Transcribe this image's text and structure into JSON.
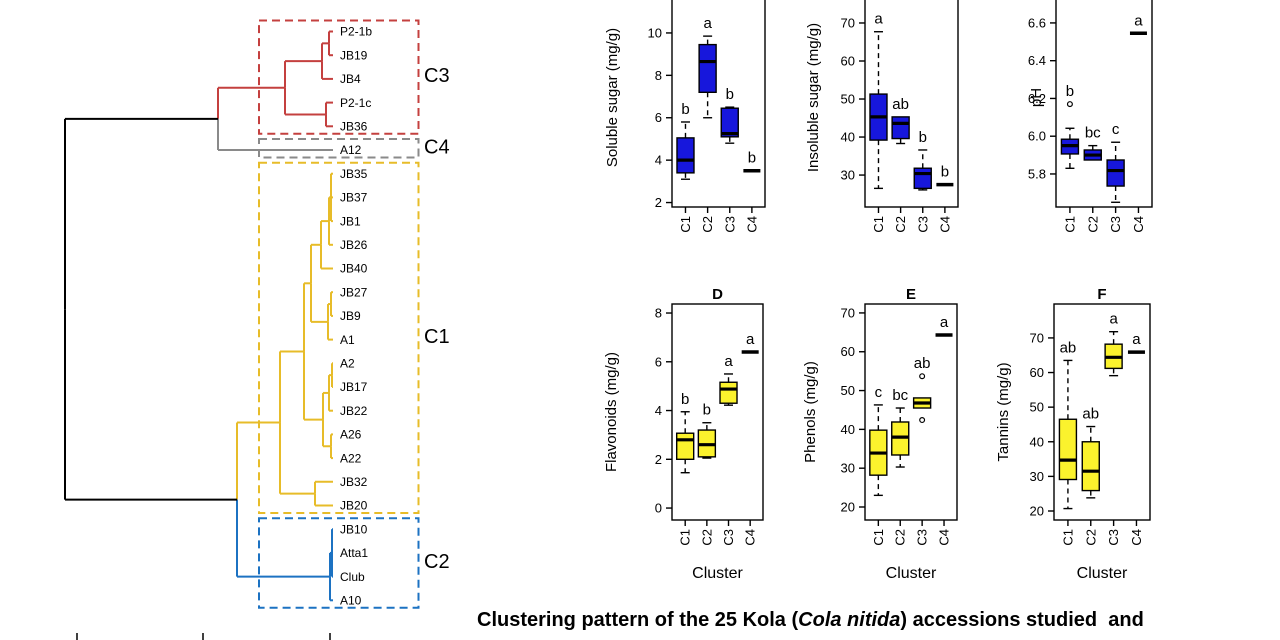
{
  "caption": {
    "prefix": "Clustering pattern of the 25 Kola (",
    "italic": "Cola nitida",
    "suffix": ") accessions studied  and"
  },
  "chart_data": [
    {
      "type": "dendrogram",
      "orientation": "horizontal",
      "leaves": [
        {
          "name": "P2-1b",
          "cluster": "C3"
        },
        {
          "name": "JB19",
          "cluster": "C3"
        },
        {
          "name": "JB4",
          "cluster": "C3"
        },
        {
          "name": "P2-1c",
          "cluster": "C3"
        },
        {
          "name": "JB36",
          "cluster": "C3"
        },
        {
          "name": "A12",
          "cluster": "C4"
        },
        {
          "name": "JB35",
          "cluster": "C1"
        },
        {
          "name": "JB37",
          "cluster": "C1"
        },
        {
          "name": "JB1",
          "cluster": "C1"
        },
        {
          "name": "JB26",
          "cluster": "C1"
        },
        {
          "name": "JB40",
          "cluster": "C1"
        },
        {
          "name": "JB27",
          "cluster": "C1"
        },
        {
          "name": "JB9",
          "cluster": "C1"
        },
        {
          "name": "A1",
          "cluster": "C1"
        },
        {
          "name": "A2",
          "cluster": "C1"
        },
        {
          "name": "JB17",
          "cluster": "C1"
        },
        {
          "name": "JB22",
          "cluster": "C1"
        },
        {
          "name": "A26",
          "cluster": "C1"
        },
        {
          "name": "A22",
          "cluster": "C1"
        },
        {
          "name": "JB32",
          "cluster": "C1"
        },
        {
          "name": "JB20",
          "cluster": "C1"
        },
        {
          "name": "JB10",
          "cluster": "C2"
        },
        {
          "name": "Atta1",
          "cluster": "C2"
        },
        {
          "name": "Club",
          "cluster": "C2"
        },
        {
          "name": "A10",
          "cluster": "C2"
        }
      ],
      "clusters": [
        {
          "id": "C3",
          "label": "C3",
          "color": "#C4403F"
        },
        {
          "id": "C4",
          "label": "C4",
          "color": "#8A8A8A"
        },
        {
          "id": "C1",
          "label": "C1",
          "color": "#E7BC29"
        },
        {
          "id": "C2",
          "label": "C2",
          "color": "#1C72C2"
        }
      ],
      "tree": {
        "x": 65,
        "children": [
          {
            "x": 218,
            "children": [
              {
                "x": 285,
                "children": [
                  {
                    "x": 322,
                    "children": [
                      {
                        "x": 329,
                        "children": [
                          {
                            "leaf": "P2-1b"
                          },
                          {
                            "leaf": "JB19"
                          }
                        ]
                      },
                      {
                        "leaf": "JB4"
                      }
                    ]
                  },
                  {
                    "x": 326,
                    "children": [
                      {
                        "leaf": "P2-1c"
                      },
                      {
                        "leaf": "JB36"
                      }
                    ]
                  }
                ]
              },
              {
                "leaf": "A12"
              }
            ]
          },
          {
            "x": 237,
            "children": [
              {
                "x": 280,
                "children": [
                  {
                    "x": 304,
                    "children": [
                      {
                        "x": 311,
                        "children": [
                          {
                            "x": 321,
                            "children": [
                              {
                                "x": 329,
                                "children": [
                                  {
                                    "x": 331,
                                    "children": [
                                      {
                                        "leaf": "JB35"
                                      },
                                      {
                                        "leaf": "JB37"
                                      },
                                      {
                                        "leaf": "JB1"
                                      }
                                    ]
                                  },
                                  {
                                    "leaf": "JB26"
                                  }
                                ]
                              },
                              {
                                "leaf": "JB40"
                              }
                            ]
                          },
                          {
                            "x": 328,
                            "children": [
                              {
                                "x": 331,
                                "children": [
                                  {
                                    "leaf": "JB27"
                                  },
                                  {
                                    "leaf": "JB9"
                                  }
                                ]
                              },
                              {
                                "leaf": "A1"
                              }
                            ]
                          }
                        ]
                      },
                      {
                        "x": 323,
                        "children": [
                          {
                            "x": 329,
                            "children": [
                              {
                                "x": 332,
                                "children": [
                                  {
                                    "leaf": "A2"
                                  },
                                  {
                                    "leaf": "JB17"
                                  }
                                ]
                              },
                              {
                                "leaf": "JB22"
                              }
                            ]
                          },
                          {
                            "x": 331,
                            "children": [
                              {
                                "leaf": "A26"
                              },
                              {
                                "leaf": "A22"
                              }
                            ]
                          }
                        ]
                      }
                    ]
                  },
                  {
                    "x": 315,
                    "children": [
                      {
                        "leaf": "JB32"
                      },
                      {
                        "leaf": "JB20"
                      }
                    ]
                  }
                ]
              },
              {
                "x": 330,
                "children": [
                  {
                    "x": 332,
                    "children": [
                      {
                        "leaf": "JB10"
                      },
                      {
                        "leaf": "Atta1"
                      },
                      {
                        "leaf": "Club"
                      }
                    ]
                  },
                  {
                    "leaf": "A10"
                  }
                ]
              }
            ]
          }
        ]
      }
    },
    {
      "type": "boxplot",
      "title": "",
      "ylabel": "Soluble sugar (mg/g)",
      "xlabel": "",
      "categories": [
        "C1",
        "C2",
        "C3",
        "C4"
      ],
      "yticks": [
        2,
        4,
        6,
        8,
        10
      ],
      "ytick_labels": [
        "2",
        "4",
        "6",
        "8",
        "10"
      ],
      "ylim": [
        1.79,
        12.12
      ],
      "fill": "#1717DC",
      "boxes": [
        {
          "category": "C1",
          "low": 3.1,
          "q1": 3.4,
          "median": 4.0,
          "q3": 5.05,
          "high": 5.8,
          "sig": "b"
        },
        {
          "category": "C2",
          "low": 6.0,
          "q1": 7.2,
          "median": 8.65,
          "q3": 9.45,
          "high": 9.85,
          "sig": "a"
        },
        {
          "category": "C3",
          "low": 4.8,
          "q1": 5.1,
          "median": 5.25,
          "q3": 6.45,
          "high": 6.5,
          "sig": "b"
        },
        {
          "category": "C4",
          "median": 3.5,
          "sig": "b"
        }
      ]
    },
    {
      "type": "boxplot",
      "title": "",
      "ylabel": "Insoluble sugar (mg/g)",
      "xlabel": "",
      "categories": [
        "C1",
        "C2",
        "C3",
        "C4"
      ],
      "yticks": [
        30,
        40,
        50,
        60,
        70
      ],
      "ytick_labels": [
        "30",
        "40",
        "50",
        "60",
        "70"
      ],
      "ylim": [
        21.6,
        79.2
      ],
      "fill": "#1717DC",
      "boxes": [
        {
          "category": "C1",
          "low": 26.5,
          "q1": 39.2,
          "median": 45.3,
          "q3": 51.3,
          "high": 67.7,
          "sig": "a"
        },
        {
          "category": "C2",
          "low": 38.3,
          "q1": 39.6,
          "median": 43.6,
          "q3": 45.3,
          "high": 45.3,
          "sig": "ab"
        },
        {
          "category": "C3",
          "low": 26.1,
          "q1": 26.5,
          "median": 30.4,
          "q3": 31.8,
          "high": 36.6,
          "sig": "b"
        },
        {
          "category": "C4",
          "median": 27.5,
          "sig": "b"
        }
      ]
    },
    {
      "type": "boxplot",
      "title": "",
      "ylabel": "pH",
      "xlabel": "",
      "categories": [
        "C1",
        "C2",
        "C3",
        "C4"
      ],
      "yticks": [
        5.8,
        6.0,
        6.2,
        6.4,
        6.6
      ],
      "ytick_labels": [
        "5.8",
        "6.0",
        "6.2",
        "6.4",
        "6.6"
      ],
      "ylim": [
        5.625,
        6.785
      ],
      "fill": "#1717DC",
      "boxes": [
        {
          "category": "C1",
          "low": 5.83,
          "q1": 5.906,
          "median": 5.95,
          "q3": 5.984,
          "high": 6.042,
          "outliers": [
            6.17
          ],
          "sig": "b"
        },
        {
          "category": "C2",
          "low": 5.874,
          "q1": 5.874,
          "median": 5.9,
          "q3": 5.927,
          "high": 5.95,
          "sig": "bc"
        },
        {
          "category": "C3",
          "low": 5.65,
          "q1": 5.736,
          "median": 5.818,
          "q3": 5.874,
          "high": 5.968,
          "sig": "c"
        },
        {
          "category": "C4",
          "median": 6.545,
          "sig": "a"
        }
      ]
    },
    {
      "type": "boxplot",
      "title": "D",
      "ylabel": "Flavonoids (mg/g)",
      "xlabel": "Cluster",
      "categories": [
        "C1",
        "C2",
        "C3",
        "C4"
      ],
      "yticks": [
        0,
        2,
        4,
        6,
        8
      ],
      "ytick_labels": [
        "0",
        "2",
        "4",
        "6",
        "8"
      ],
      "ylim": [
        -0.49,
        8.37
      ],
      "fill": "#FBF22D",
      "boxes": [
        {
          "category": "C1",
          "low": 1.45,
          "q1": 2.0,
          "median": 2.8,
          "q3": 3.07,
          "high": 3.95,
          "sig": "b"
        },
        {
          "category": "C2",
          "low": 2.05,
          "q1": 2.1,
          "median": 2.6,
          "q3": 3.2,
          "high": 3.5,
          "sig": "b"
        },
        {
          "category": "C3",
          "low": 4.22,
          "q1": 4.3,
          "median": 4.88,
          "q3": 5.16,
          "high": 5.5,
          "sig": "a"
        },
        {
          "category": "C4",
          "median": 6.4,
          "sig": "a"
        }
      ]
    },
    {
      "type": "boxplot",
      "title": "E",
      "ylabel": "Phenols (mg/g)",
      "xlabel": "Cluster",
      "categories": [
        "C1",
        "C2",
        "C3",
        "C4"
      ],
      "yticks": [
        20,
        30,
        40,
        50,
        60,
        70
      ],
      "ytick_labels": [
        "20",
        "30",
        "40",
        "50",
        "60",
        "70"
      ],
      "ylim": [
        16.65,
        72.3
      ],
      "fill": "#FBF22D",
      "boxes": [
        {
          "category": "C1",
          "low": 23,
          "q1": 28.2,
          "median": 33.9,
          "q3": 39.8,
          "high": 46.3,
          "sig": "c"
        },
        {
          "category": "C2",
          "low": 30.3,
          "q1": 33.4,
          "median": 38,
          "q3": 41.9,
          "high": 45.5,
          "sig": "bc"
        },
        {
          "category": "C3",
          "low": 45.5,
          "q1": 45.5,
          "median": 46.8,
          "q3": 48.1,
          "high": 48.1,
          "outliers": [
            53.7,
            42.4
          ],
          "sig": "ab"
        },
        {
          "category": "C4",
          "median": 64.3,
          "sig": "a"
        }
      ]
    },
    {
      "type": "boxplot",
      "title": "F",
      "ylabel": "Tannins (mg/g)",
      "xlabel": "Cluster",
      "categories": [
        "C1",
        "C2",
        "C3",
        "C4"
      ],
      "yticks": [
        20,
        30,
        40,
        50,
        60,
        70
      ],
      "ytick_labels": [
        "20",
        "30",
        "40",
        "50",
        "60",
        "70"
      ],
      "ylim": [
        17.4,
        79.8
      ],
      "fill": "#FBF22D",
      "boxes": [
        {
          "category": "C1",
          "low": 20.7,
          "q1": 29.1,
          "median": 34.7,
          "q3": 46.5,
          "high": 63.5,
          "sig": "ab"
        },
        {
          "category": "C2",
          "low": 23.8,
          "q1": 25.9,
          "median": 31.5,
          "q3": 40,
          "high": 44.4,
          "sig": "ab"
        },
        {
          "category": "C3",
          "low": 59.1,
          "q1": 61.2,
          "median": 64.4,
          "q3": 68.2,
          "high": 71.8,
          "sig": "a"
        },
        {
          "category": "C4",
          "median": 65.9,
          "sig": "a"
        }
      ]
    }
  ]
}
